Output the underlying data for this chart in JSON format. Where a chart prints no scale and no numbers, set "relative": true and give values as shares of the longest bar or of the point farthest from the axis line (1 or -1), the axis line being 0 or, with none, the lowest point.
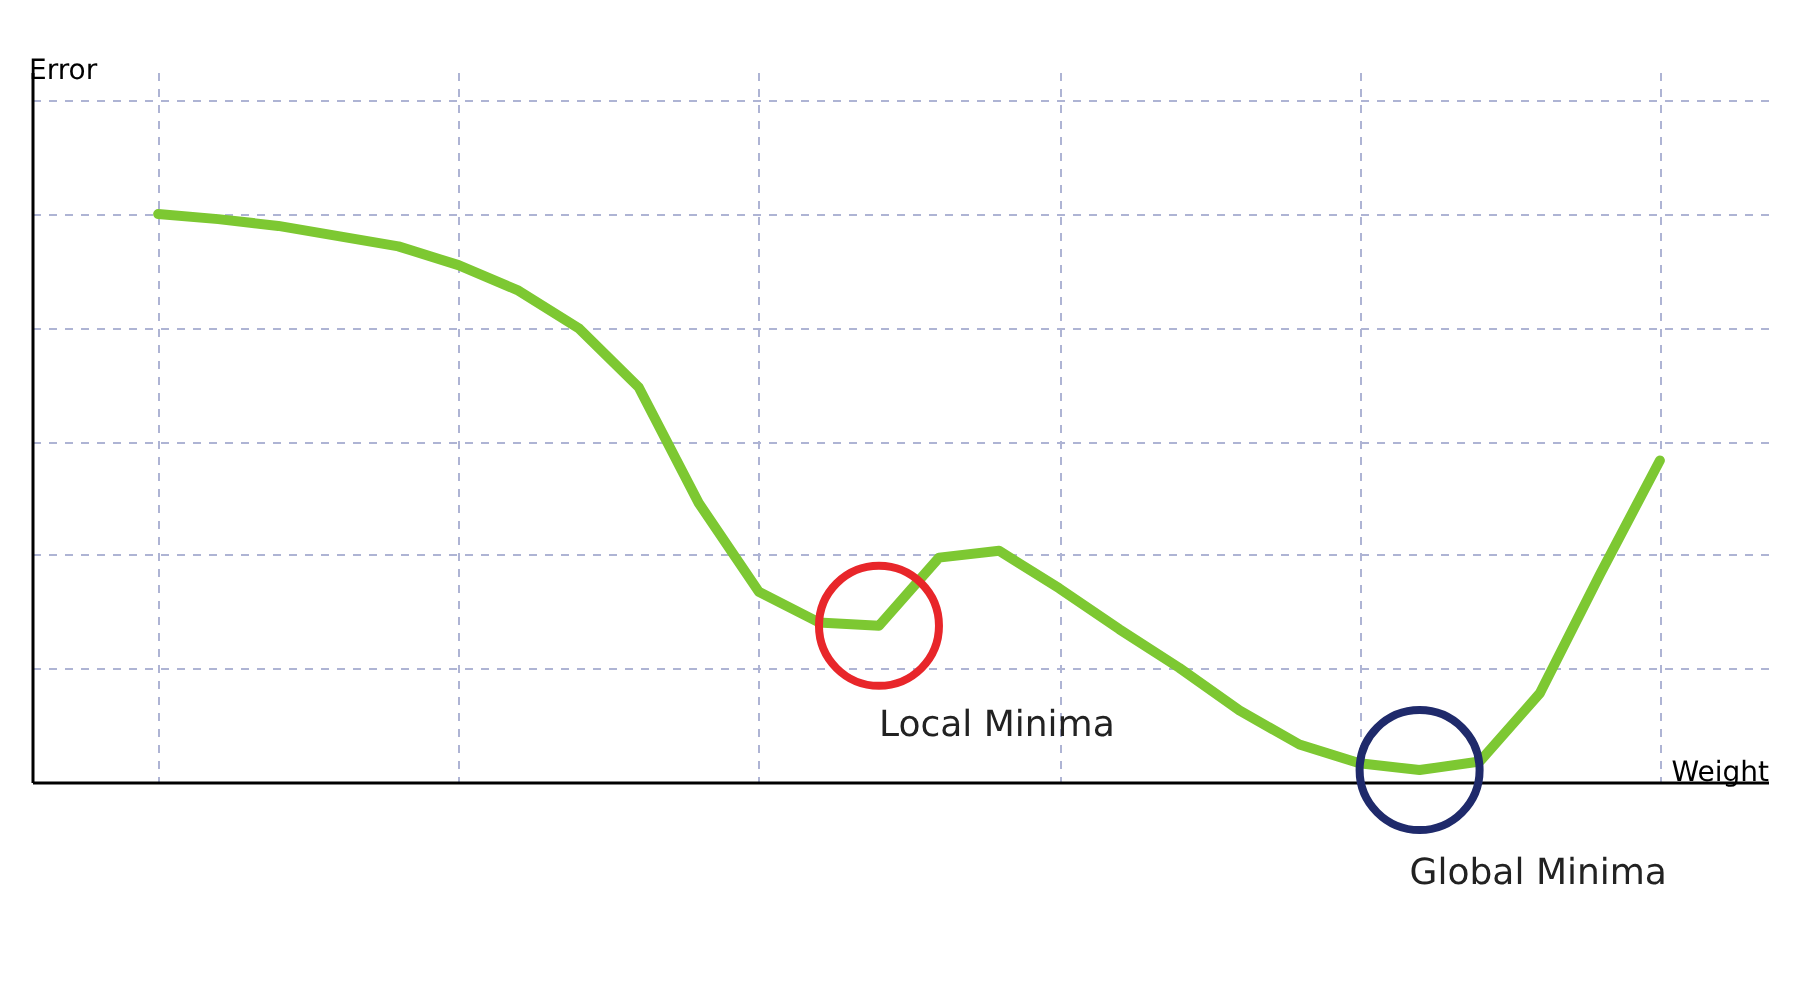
{
  "chart_data": {
    "type": "line",
    "relative": true,
    "xlabel": "Weight",
    "ylabel": "Error",
    "categories": [
      null,
      null,
      null,
      null,
      null,
      null,
      null,
      null,
      null,
      null,
      null,
      null,
      null,
      null,
      null,
      null,
      null,
      null,
      null,
      null,
      null,
      null,
      null,
      null,
      null,
      null
    ],
    "series": [
      {
        "color": "#7dc832",
        "values": [
          1,
          0.991,
          0.979,
          0.961,
          0.943,
          0.91,
          0.865,
          0.799,
          0.695,
          0.491,
          0.335,
          0.281,
          0.275,
          0.395,
          0.407,
          0.341,
          0.269,
          0.201,
          0.126,
          0.066,
          0.033,
          0.021,
          0.036,
          0.156,
          0.365,
          0.566
        ]
      }
    ],
    "annotations": [
      "Local Minima",
      "Global Minima"
    ],
    "grid": true,
    "marker": "none",
    "line_style": "solid"
  }
}
